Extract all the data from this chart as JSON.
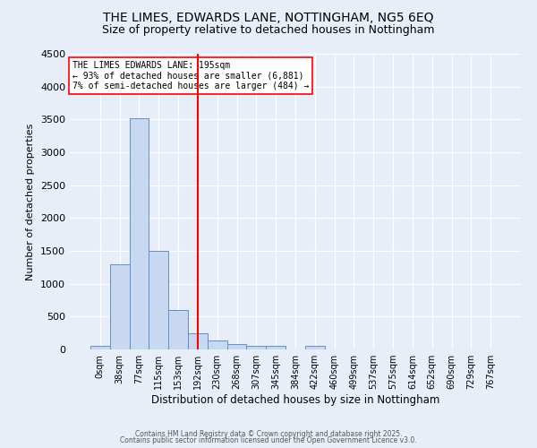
{
  "title": "THE LIMES, EDWARDS LANE, NOTTINGHAM, NG5 6EQ",
  "subtitle": "Size of property relative to detached houses in Nottingham",
  "xlabel": "Distribution of detached houses by size in Nottingham",
  "ylabel": "Number of detached properties",
  "bar_color": "#c8d8f0",
  "bar_edgecolor": "#6090c8",
  "background_color": "#e8eef8",
  "grid_color": "#ffffff",
  "vline_color": "red",
  "vline_x": 5,
  "categories": [
    "0sqm",
    "38sqm",
    "77sqm",
    "115sqm",
    "153sqm",
    "192sqm",
    "230sqm",
    "268sqm",
    "307sqm",
    "345sqm",
    "384sqm",
    "422sqm",
    "460sqm",
    "499sqm",
    "537sqm",
    "575sqm",
    "614sqm",
    "652sqm",
    "690sqm",
    "729sqm",
    "767sqm"
  ],
  "values": [
    50,
    1290,
    3520,
    1500,
    600,
    250,
    130,
    80,
    50,
    50,
    0,
    50,
    0,
    0,
    0,
    0,
    0,
    0,
    0,
    0,
    0
  ],
  "ylim": [
    0,
    4500
  ],
  "yticks": [
    0,
    500,
    1000,
    1500,
    2000,
    2500,
    3000,
    3500,
    4000,
    4500
  ],
  "annotation_line1": "THE LIMES EDWARDS LANE: 195sqm",
  "annotation_line2": "← 93% of detached houses are smaller (6,881)",
  "annotation_line3": "7% of semi-detached houses are larger (484) →",
  "annotation_box_color": "#ffffff",
  "annotation_border_color": "red",
  "footer_line1": "Contains HM Land Registry data © Crown copyright and database right 2025.",
  "footer_line2": "Contains public sector information licensed under the Open Government Licence v3.0."
}
